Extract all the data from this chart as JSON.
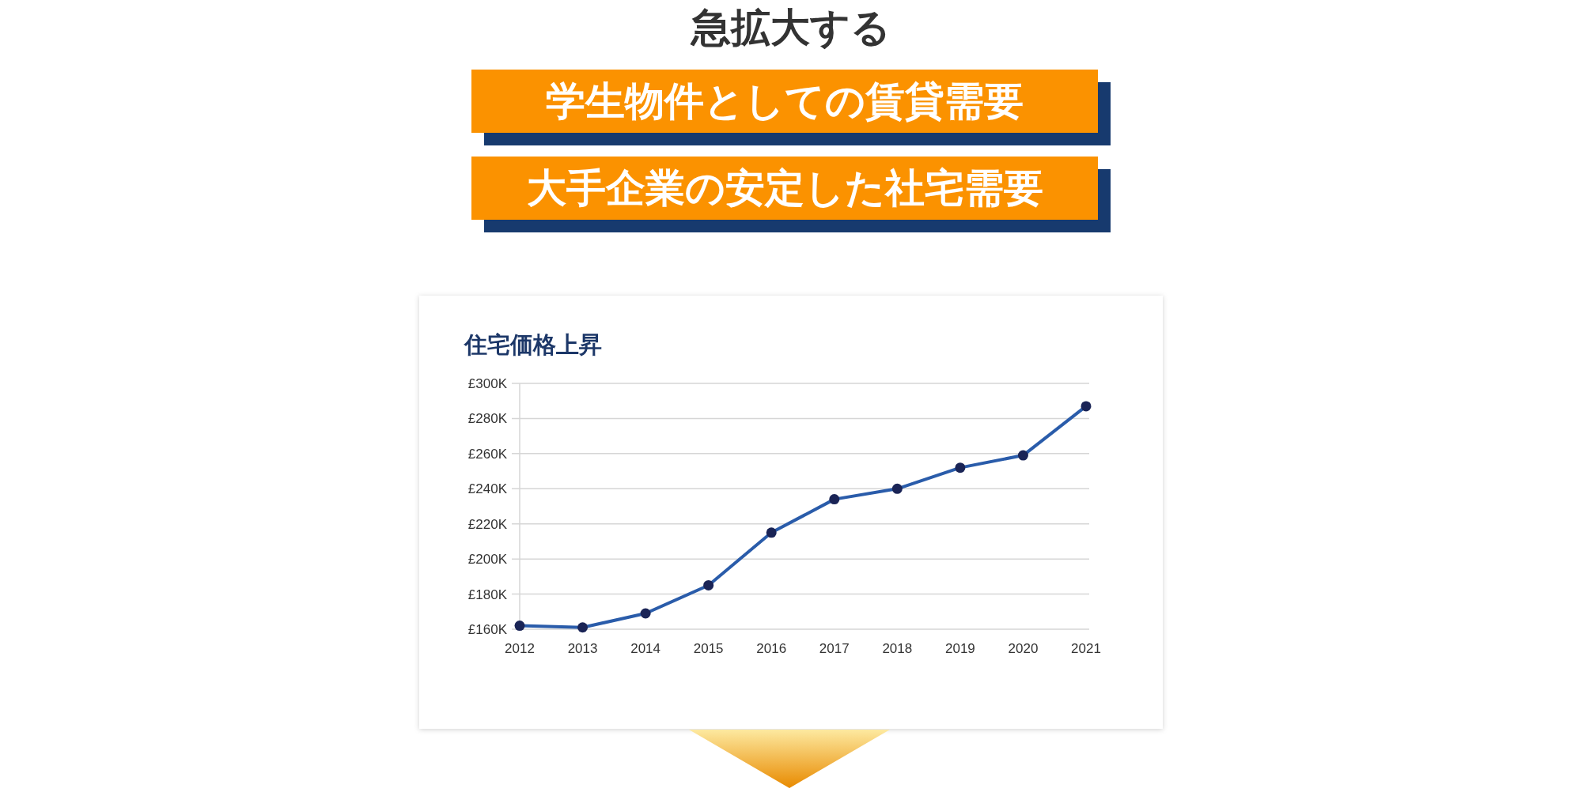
{
  "chart_data": {
    "type": "line",
    "title": "住宅価格上昇",
    "annotations": [
      "急拡大する",
      "学生物件としての賃貸需要",
      "大手企業の安定した社宅需要"
    ],
    "categories": [
      "2012",
      "2013",
      "2014",
      "2015",
      "2016",
      "2017",
      "2018",
      "2019",
      "2020",
      "2021"
    ],
    "series": [
      {
        "color": "#2a5caa",
        "values": [
          162,
          161,
          169,
          185,
          215,
          234,
          240,
          252,
          259,
          287
        ]
      }
    ],
    "ylim": [
      160,
      300
    ],
    "yticks": [
      {
        "value": 160,
        "label": "£160K"
      },
      {
        "value": 180,
        "label": "£180K"
      },
      {
        "value": 200,
        "label": "£200K"
      },
      {
        "value": 220,
        "label": "£220K"
      },
      {
        "value": 240,
        "label": "£240K"
      },
      {
        "value": 260,
        "label": "£260K"
      },
      {
        "value": 280,
        "label": "£280K"
      },
      {
        "value": 300,
        "label": "£300K"
      }
    ],
    "grid": "y",
    "marker": "circle",
    "line_style": "solid"
  }
}
